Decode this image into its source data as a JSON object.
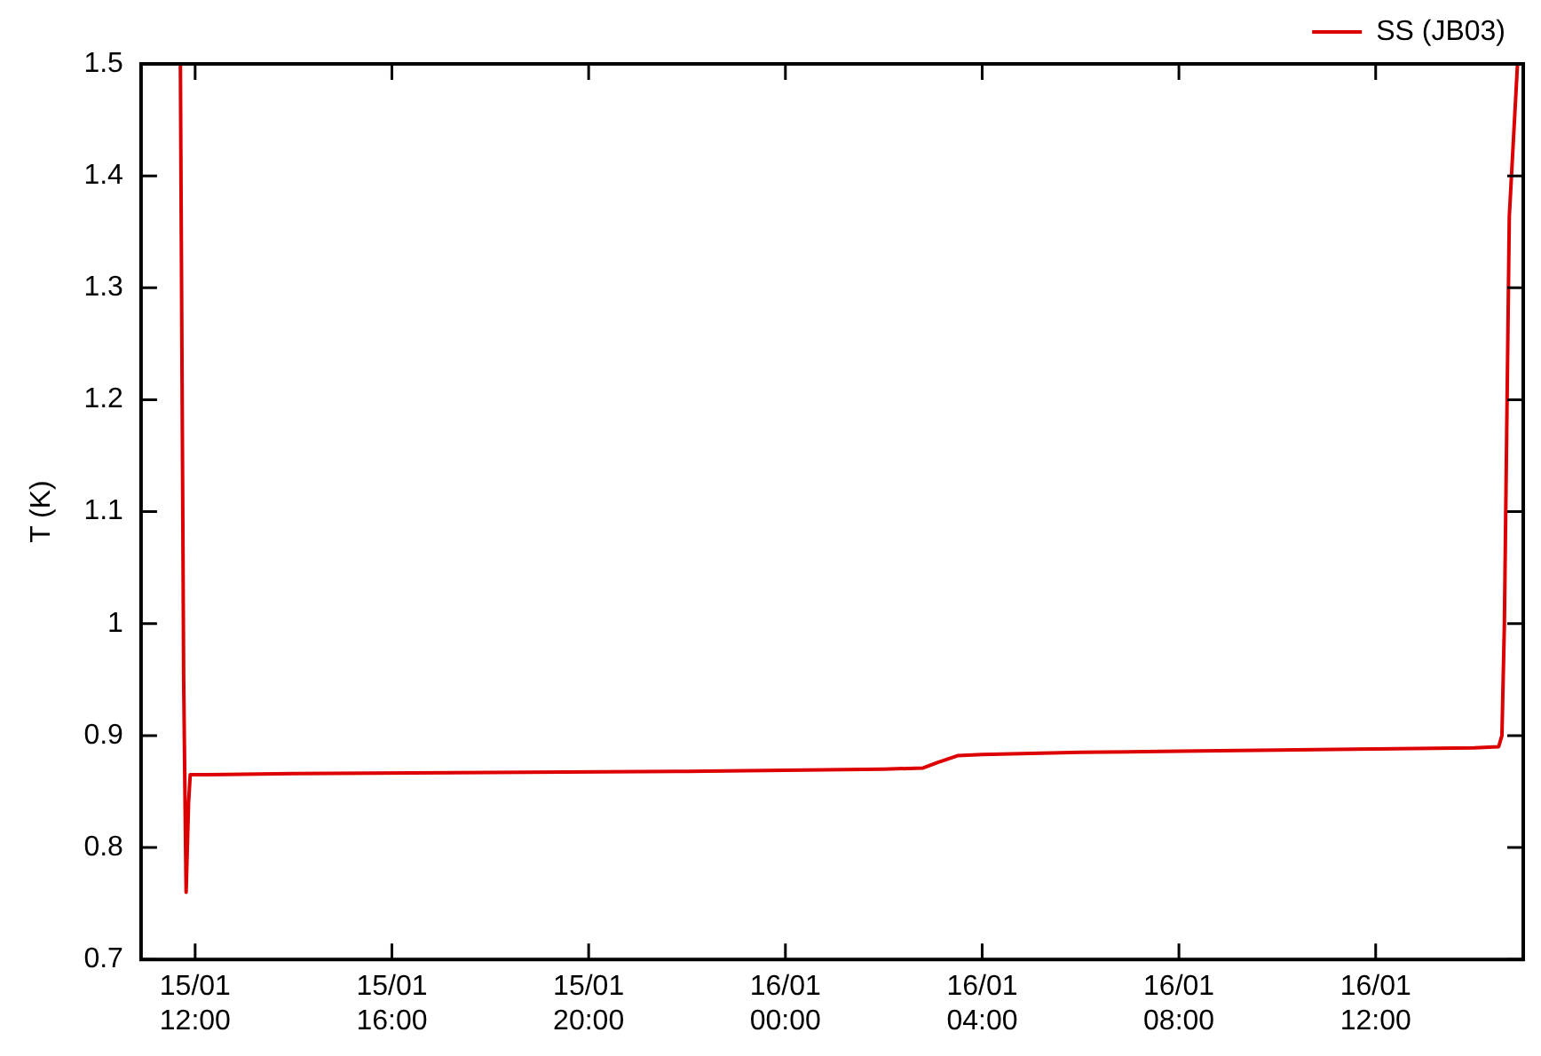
{
  "chart_data": {
    "type": "line",
    "ylabel": "T (K)",
    "legend": "top right",
    "grid": false,
    "marker": "none",
    "line_style": "solid",
    "xlim": [
      "--01-15T10:54",
      "--01-16T15:00"
    ],
    "ylim": [
      0.7,
      1.5
    ],
    "xticks": [
      {
        "value": "--01-15T12:00",
        "label": "15/01\n12:00"
      },
      {
        "value": "--01-15T16:00",
        "label": "15/01\n16:00"
      },
      {
        "value": "--01-15T20:00",
        "label": "15/01\n20:00"
      },
      {
        "value": "--01-16T00:00",
        "label": "16/01\n00:00"
      },
      {
        "value": "--01-16T04:00",
        "label": "16/01\n04:00"
      },
      {
        "value": "--01-16T08:00",
        "label": "16/01\n08:00"
      },
      {
        "value": "--01-16T12:00",
        "label": "16/01\n12:00"
      }
    ],
    "yticks": [
      0.7,
      0.8,
      0.9,
      1,
      1.1,
      1.2,
      1.3,
      1.4,
      1.5
    ],
    "series": [
      {
        "name": "SS (JB03)",
        "color": "#dd0000",
        "x": [
          "--01-15T11:42",
          "--01-15T11:46",
          "--01-15T11:48",
          "--01-15T11:49",
          "--01-15T11:52",
          "--01-15T11:54",
          "--01-15T12:12",
          "--01-15T14:00",
          "--01-15T18:00",
          "--01-15T22:00",
          "--01-16T02:00",
          "--01-16T02:48",
          "--01-16T03:06",
          "--01-16T03:30",
          "--01-16T04:00",
          "--01-16T06:00",
          "--01-16T08:00",
          "--01-16T10:00",
          "--01-16T12:00",
          "--01-16T14:00",
          "--01-16T14:30",
          "--01-16T14:34",
          "--01-16T14:37",
          "--01-16T14:43",
          "--01-16T14:53"
        ],
        "values": [
          1.5,
          0.95,
          0.82,
          0.76,
          0.84,
          0.865,
          0.865,
          0.866,
          0.867,
          0.868,
          0.87,
          0.871,
          0.876,
          0.882,
          0.883,
          0.885,
          0.886,
          0.887,
          0.888,
          0.889,
          0.89,
          0.9,
          1.0,
          1.364,
          1.5
        ]
      }
    ]
  }
}
